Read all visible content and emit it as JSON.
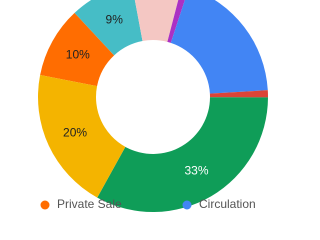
{
  "chart_data": {
    "type": "pie",
    "categories": [
      "Private Sale",
      null,
      null,
      null,
      "Circulation",
      null,
      null,
      null
    ],
    "values": [
      10,
      9,
      7,
      1,
      19,
      1,
      33,
      20
    ],
    "value_labels": [
      "10%",
      "9%",
      null,
      null,
      null,
      null,
      "33%",
      "20%"
    ],
    "colors": [
      "#ff6d01",
      "#46bdc6",
      "#f4c7c3",
      "#ab30c4",
      "#4285f4",
      "#db4437",
      "#0f9d58",
      "#f4b400"
    ],
    "donut": true
  }
}
